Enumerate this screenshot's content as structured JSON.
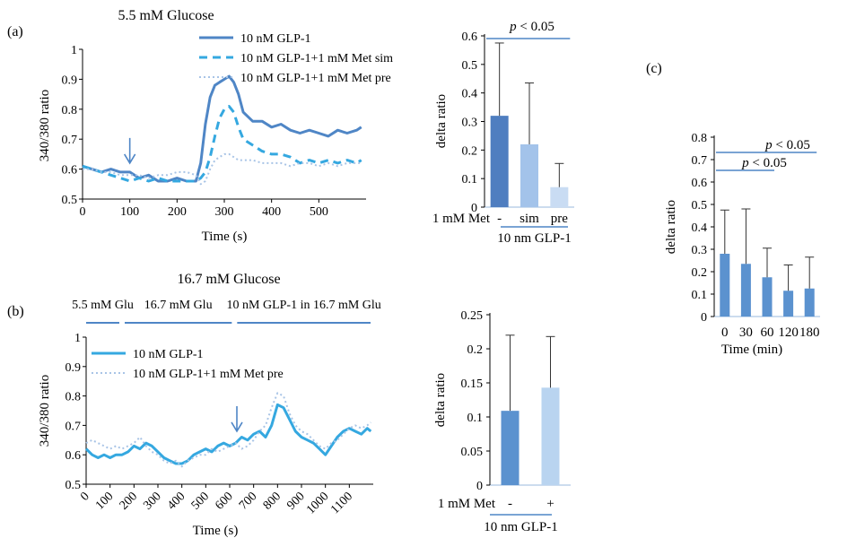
{
  "panel_labels": {
    "a": "(a)",
    "b": "(b)",
    "c": "(c)"
  },
  "colors": {
    "dark_blue": "#4f86c6",
    "light_blue": "#9fc3e8",
    "cyan": "#35a8e0",
    "dotted": "#a8c4e6",
    "text": "#000000",
    "axis": "#000000"
  },
  "chart_data": [
    {
      "id": "a-line",
      "type": "line",
      "title": "5.5 mM Glucose",
      "xlabel": "Time (s)",
      "ylabel": "340/380 ratio",
      "xlim": [
        0,
        600
      ],
      "ylim": [
        0.5,
        1.0
      ],
      "xticks": [
        "0",
        "100",
        "200",
        "300",
        "400",
        "500"
      ],
      "xtick_values": [
        0,
        100,
        200,
        300,
        400,
        500
      ],
      "yticks": [
        "0.5",
        "0.6",
        "0.7",
        "0.8",
        "0.9",
        "1"
      ],
      "ytick_values": [
        0.5,
        0.6,
        0.7,
        0.8,
        0.9,
        1.0
      ],
      "legend_position": "top-right",
      "annotations": [
        {
          "type": "arrow-down",
          "x": 100,
          "y": 0.62
        }
      ],
      "series": [
        {
          "name": "10 nM GLP-1",
          "style": "solid",
          "color": "#4f86c6",
          "x": [
            0,
            20,
            40,
            60,
            80,
            100,
            120,
            140,
            160,
            180,
            200,
            220,
            240,
            250,
            260,
            270,
            280,
            290,
            300,
            310,
            320,
            330,
            340,
            360,
            380,
            400,
            420,
            440,
            460,
            480,
            500,
            520,
            540,
            560,
            580,
            590
          ],
          "y": [
            0.61,
            0.6,
            0.59,
            0.6,
            0.59,
            0.59,
            0.57,
            0.58,
            0.56,
            0.56,
            0.57,
            0.56,
            0.56,
            0.62,
            0.75,
            0.84,
            0.88,
            0.89,
            0.9,
            0.91,
            0.89,
            0.85,
            0.79,
            0.76,
            0.76,
            0.74,
            0.75,
            0.73,
            0.72,
            0.73,
            0.72,
            0.71,
            0.73,
            0.72,
            0.73,
            0.74
          ]
        },
        {
          "name": "10 nM GLP-1+1 mM Met sim",
          "style": "dashed",
          "color": "#35a8e0",
          "x": [
            0,
            20,
            40,
            60,
            80,
            100,
            120,
            140,
            160,
            180,
            200,
            220,
            240,
            250,
            260,
            270,
            280,
            290,
            300,
            310,
            320,
            330,
            340,
            360,
            380,
            400,
            420,
            440,
            460,
            480,
            500,
            520,
            540,
            560,
            580,
            590
          ],
          "y": [
            0.61,
            0.6,
            0.59,
            0.58,
            0.57,
            0.56,
            0.57,
            0.56,
            0.57,
            0.56,
            0.56,
            0.56,
            0.56,
            0.57,
            0.59,
            0.64,
            0.71,
            0.77,
            0.8,
            0.81,
            0.79,
            0.74,
            0.7,
            0.68,
            0.66,
            0.65,
            0.65,
            0.64,
            0.62,
            0.63,
            0.62,
            0.63,
            0.62,
            0.63,
            0.62,
            0.63
          ]
        },
        {
          "name": "10 nM GLP-1+1 mM Met pre",
          "style": "dotted",
          "color": "#a8c4e6",
          "x": [
            0,
            20,
            40,
            60,
            80,
            100,
            120,
            140,
            160,
            180,
            200,
            220,
            240,
            250,
            260,
            270,
            280,
            290,
            300,
            310,
            320,
            330,
            340,
            360,
            380,
            400,
            420,
            440,
            460,
            480,
            500,
            520,
            540,
            560,
            580,
            590
          ],
          "y": [
            0.6,
            0.6,
            0.59,
            0.59,
            0.58,
            0.58,
            0.58,
            0.57,
            0.58,
            0.58,
            0.59,
            0.59,
            0.58,
            0.55,
            0.56,
            0.6,
            0.63,
            0.64,
            0.65,
            0.65,
            0.64,
            0.63,
            0.63,
            0.63,
            0.62,
            0.62,
            0.62,
            0.61,
            0.62,
            0.62,
            0.61,
            0.62,
            0.61,
            0.62,
            0.62,
            0.62
          ]
        }
      ]
    },
    {
      "id": "a-bar",
      "type": "bar",
      "ylabel": "delta ratio",
      "ylim": [
        0,
        0.6
      ],
      "yticks": [
        "0",
        "0.1",
        "0.2",
        "0.3",
        "0.4",
        "0.5",
        "0.6"
      ],
      "ytick_values": [
        0,
        0.1,
        0.2,
        0.3,
        0.4,
        0.5,
        0.6
      ],
      "row_label": "1 mM Met",
      "categories": [
        "-",
        "sim",
        "pre"
      ],
      "values": [
        0.32,
        0.22,
        0.07
      ],
      "errors": [
        0.255,
        0.215,
        0.083
      ],
      "bar_colors": [
        "#4f7ec0",
        "#a3c3ea",
        "#c9dcf3"
      ],
      "group_label": "10 nm GLP-1",
      "significance": [
        {
          "label": "p < 0.05",
          "from": 0,
          "to": 2
        }
      ]
    },
    {
      "id": "b-line",
      "type": "line",
      "title": "16.7 mM Glucose",
      "xlabel": "Time (s)",
      "ylabel": "340/380 ratio",
      "xlim": [
        0,
        1200
      ],
      "ylim": [
        0.5,
        1.0
      ],
      "xticks": [
        "0",
        "100",
        "200",
        "300",
        "400",
        "500",
        "600",
        "700",
        "800",
        "900",
        "1000",
        "1100"
      ],
      "xtick_values": [
        0,
        100,
        200,
        300,
        400,
        500,
        600,
        700,
        800,
        900,
        1000,
        1100
      ],
      "yticks": [
        "0.5",
        "0.6",
        "0.7",
        "0.8",
        "0.9",
        "1"
      ],
      "ytick_values": [
        0.5,
        0.6,
        0.7,
        0.8,
        0.9,
        1.0
      ],
      "legend_position": "top-left",
      "phases": [
        {
          "label": "5.5 mM Glu",
          "from": 0,
          "to": 150
        },
        {
          "label": "16.7 mM Glu",
          "from": 150,
          "to": 620
        },
        {
          "label": "10 nM GLP-1 in 16.7 mM Glu",
          "from": 620,
          "to": 1200
        }
      ],
      "annotations": [
        {
          "type": "arrow-down",
          "x": 630,
          "y": 0.68
        }
      ],
      "series": [
        {
          "name": "10 nM GLP-1",
          "style": "solid",
          "color": "#35a8e0",
          "x": [
            0,
            25,
            50,
            75,
            100,
            125,
            150,
            175,
            200,
            225,
            250,
            275,
            300,
            325,
            350,
            375,
            400,
            425,
            450,
            475,
            500,
            525,
            550,
            575,
            600,
            625,
            650,
            675,
            700,
            725,
            750,
            775,
            800,
            825,
            850,
            875,
            900,
            925,
            950,
            975,
            1000,
            1025,
            1050,
            1075,
            1100,
            1125,
            1150,
            1175,
            1190
          ],
          "y": [
            0.62,
            0.6,
            0.59,
            0.6,
            0.59,
            0.6,
            0.6,
            0.61,
            0.63,
            0.62,
            0.64,
            0.63,
            0.61,
            0.59,
            0.58,
            0.57,
            0.57,
            0.58,
            0.6,
            0.61,
            0.62,
            0.61,
            0.63,
            0.64,
            0.63,
            0.64,
            0.66,
            0.65,
            0.67,
            0.68,
            0.66,
            0.7,
            0.77,
            0.76,
            0.72,
            0.68,
            0.66,
            0.65,
            0.64,
            0.62,
            0.6,
            0.63,
            0.66,
            0.68,
            0.69,
            0.68,
            0.67,
            0.69,
            0.68
          ]
        },
        {
          "name": "10 nM GLP-1+1 mM Met pre",
          "style": "dotted",
          "color": "#a8c4e6",
          "x": [
            0,
            25,
            50,
            75,
            100,
            125,
            150,
            175,
            200,
            225,
            250,
            275,
            300,
            325,
            350,
            375,
            400,
            425,
            450,
            475,
            500,
            525,
            550,
            575,
            600,
            625,
            650,
            675,
            700,
            725,
            750,
            775,
            800,
            825,
            850,
            875,
            900,
            925,
            950,
            975,
            1000,
            1025,
            1050,
            1075,
            1100,
            1125,
            1150,
            1175,
            1190
          ],
          "y": [
            0.64,
            0.65,
            0.64,
            0.63,
            0.62,
            0.63,
            0.62,
            0.63,
            0.64,
            0.66,
            0.63,
            0.61,
            0.6,
            0.58,
            0.57,
            0.58,
            0.56,
            0.58,
            0.59,
            0.6,
            0.6,
            0.62,
            0.61,
            0.62,
            0.63,
            0.64,
            0.62,
            0.63,
            0.65,
            0.68,
            0.7,
            0.76,
            0.81,
            0.8,
            0.74,
            0.7,
            0.68,
            0.67,
            0.65,
            0.63,
            0.62,
            0.64,
            0.65,
            0.67,
            0.69,
            0.7,
            0.69,
            0.7,
            0.71
          ]
        }
      ]
    },
    {
      "id": "b-bar",
      "type": "bar",
      "ylabel": "delta ratio",
      "ylim": [
        0,
        0.25
      ],
      "yticks": [
        "0",
        "0.05",
        "0.1",
        "0.15",
        "0.2",
        "0.25"
      ],
      "ytick_values": [
        0,
        0.05,
        0.1,
        0.15,
        0.2,
        0.25
      ],
      "row_label": "1 mM Met",
      "categories": [
        "-",
        "+"
      ],
      "values": [
        0.109,
        0.143
      ],
      "errors": [
        0.111,
        0.075
      ],
      "bar_colors": [
        "#5b92cf",
        "#b9d4f0"
      ],
      "group_label": "10 nm GLP-1"
    },
    {
      "id": "c-bar",
      "type": "bar",
      "xlabel": "Time (min)",
      "ylabel": "delta ratio",
      "ylim": [
        0,
        0.8
      ],
      "yticks": [
        "0",
        "0.1",
        "0.2",
        "0.3",
        "0.4",
        "0.5",
        "0.6",
        "0.7",
        "0.8"
      ],
      "ytick_values": [
        0,
        0.1,
        0.2,
        0.3,
        0.4,
        0.5,
        0.6,
        0.7,
        0.8
      ],
      "categories": [
        "0",
        "30",
        "60",
        "120",
        "180"
      ],
      "values": [
        0.28,
        0.235,
        0.175,
        0.115,
        0.125
      ],
      "errors": [
        0.195,
        0.245,
        0.13,
        0.115,
        0.14
      ],
      "bar_colors": [
        "#5b92cf",
        "#5b92cf",
        "#5b92cf",
        "#5b92cf",
        "#5b92cf"
      ],
      "significance": [
        {
          "label": "p < 0.05",
          "from": 0,
          "to": 4
        },
        {
          "label": "p < 0.05",
          "from": 0,
          "to": 2
        }
      ]
    }
  ]
}
